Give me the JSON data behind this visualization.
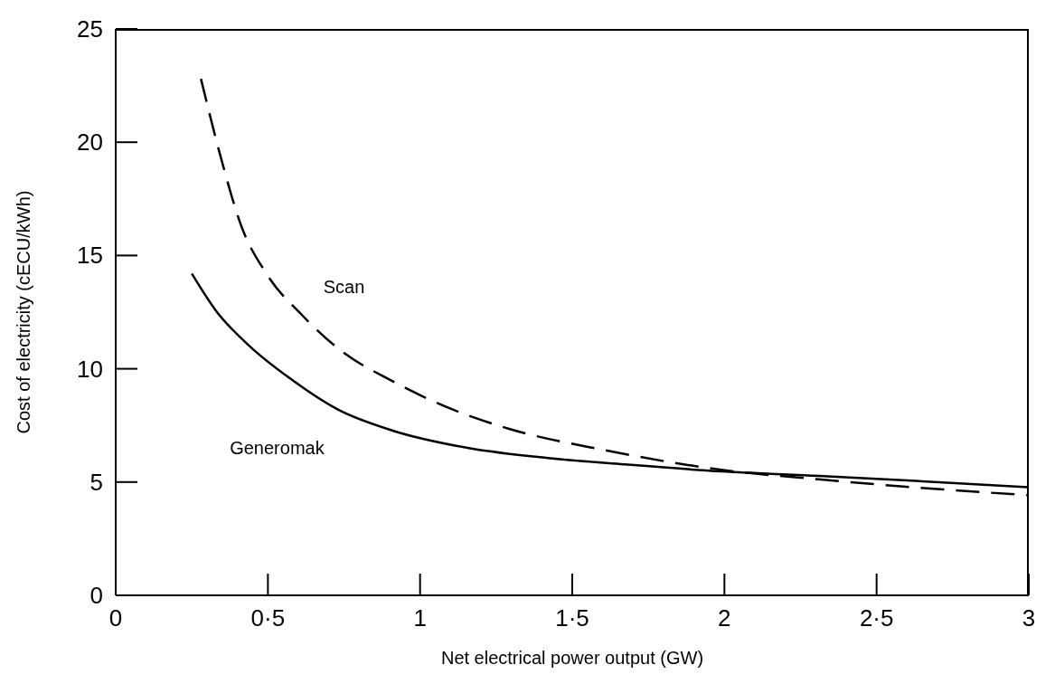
{
  "chart_data": {
    "type": "line",
    "xlabel": "Net electrical power output (GW)",
    "ylabel": "Cost of electricity (cECU/kWh)",
    "xlim": [
      0,
      3
    ],
    "ylim": [
      0,
      25
    ],
    "xticks": [
      0,
      {
        "value": 0.5,
        "label": "0·5"
      },
      1,
      {
        "value": 1.5,
        "label": "1·5"
      },
      2,
      {
        "value": 2.5,
        "label": "2·5"
      },
      3
    ],
    "yticks": [
      0,
      5,
      10,
      15,
      20,
      25
    ],
    "marker": "none",
    "series": [
      {
        "name": "Scan",
        "color": "#000000",
        "line_style": "dashed",
        "x": [
          0.28,
          0.35,
          0.41,
          0.5,
          0.61,
          0.74,
          0.91,
          1.1,
          1.29,
          1.61,
          1.99,
          2.31,
          2.63,
          3.0
        ],
        "values": [
          22.8,
          19.1,
          16.4,
          14.1,
          12.4,
          10.8,
          9.45,
          8.24,
          7.36,
          6.4,
          5.54,
          5.12,
          4.76,
          4.42
        ]
      },
      {
        "name": "Generomak",
        "color": "#000000",
        "line_style": "solid",
        "x": [
          0.25,
          0.33,
          0.44,
          0.57,
          0.73,
          0.91,
          1.16,
          1.42,
          1.67,
          1.99,
          2.31,
          2.63,
          3.0
        ],
        "values": [
          14.2,
          12.55,
          11.0,
          9.6,
          8.2,
          7.27,
          6.5,
          6.06,
          5.78,
          5.47,
          5.27,
          5.05,
          4.77
        ]
      }
    ]
  }
}
